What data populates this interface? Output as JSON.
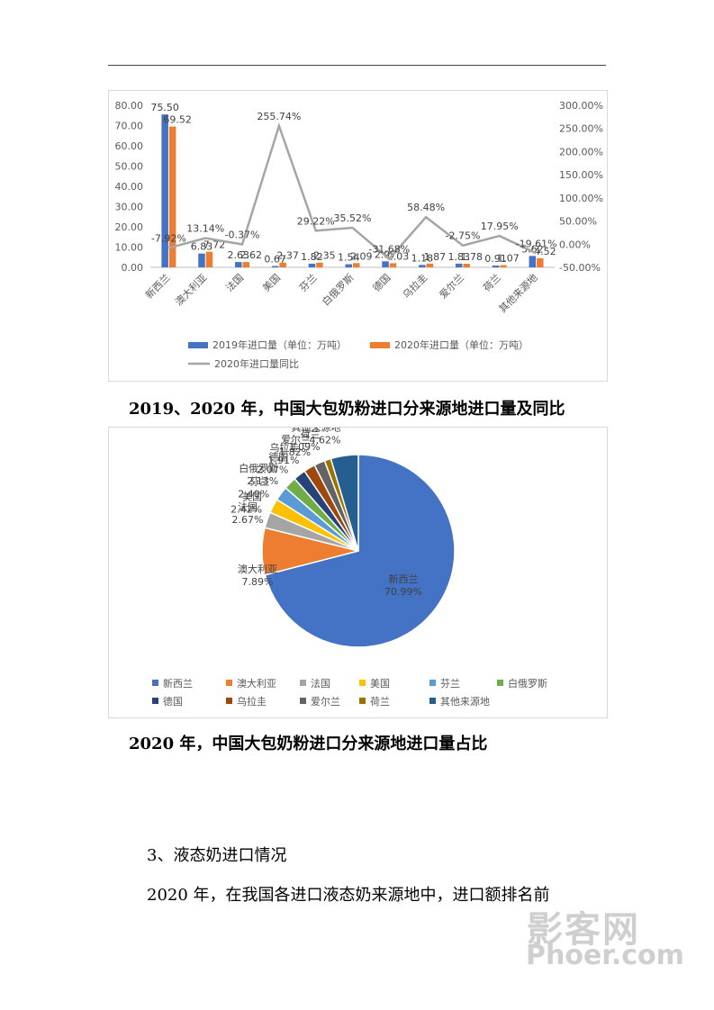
{
  "charts": {
    "bar_line": {
      "caption": "2019、2020 年，中国大包奶粉进口分来源地进口量及同比",
      "legend": {
        "s2019": "2019年进口量（单位：万吨）",
        "s2020": "2020年进口量（单位：万吨）",
        "yoy": "2020年进口量同比"
      }
    },
    "pie": {
      "caption": "2020 年，中国大包奶粉进口分来源地进口量占比"
    }
  },
  "chart_data": [
    {
      "type": "bar",
      "categories": [
        "新西兰",
        "澳大利亚",
        "法国",
        "美国",
        "芬兰",
        "白俄罗斯",
        "德国",
        "乌拉圭",
        "爱尔兰",
        "荷兰",
        "其他来源地"
      ],
      "series": [
        {
          "name": "2019年进口量（单位：万吨）",
          "values": [
            75.5,
            6.83,
            2.63,
            0.67,
            1.82,
            1.54,
            2.97,
            1.18,
            1.83,
            0.91,
            5.62
          ],
          "labels": [
            "75.50",
            "6.83",
            "2.63",
            "0.67",
            "1.82",
            "1.54",
            "2.97",
            "1.18",
            "1.83",
            "0.91",
            "5.62"
          ],
          "color": "#4472c4"
        },
        {
          "name": "2020年进口量（单位：万吨）",
          "values": [
            69.52,
            7.72,
            2.62,
            2.37,
            2.35,
            2.09,
            2.03,
            1.87,
            1.78,
            1.07,
            4.52
          ],
          "labels": [
            "69.52",
            "7.72",
            "2.62",
            "2.37",
            "2.35",
            "2.09",
            "2.03",
            "1.87",
            "1.78",
            "1.07",
            "4.52"
          ],
          "color": "#ed7d31"
        },
        {
          "name": "2020年进口量同比",
          "type": "line",
          "axis": "right",
          "values": [
            -7.92,
            13.14,
            -0.37,
            255.74,
            29.22,
            35.52,
            -31.68,
            58.48,
            -2.75,
            17.95,
            -19.61
          ],
          "labels": [
            "-7.92%",
            "13.14%",
            "-0.37%",
            "255.74%",
            "29.22%",
            "35.52%",
            "-31.68%",
            "58.48%",
            "-2.75%",
            "17.95%",
            "-19.61%"
          ],
          "color": "#a5a5a5"
        }
      ],
      "ylim_left": [
        0,
        80
      ],
      "yticks_left": [
        "0.00",
        "10.00",
        "20.00",
        "30.00",
        "40.00",
        "50.00",
        "60.00",
        "70.00",
        "80.00"
      ],
      "ylim_right": [
        -50,
        300
      ],
      "yticks_right": [
        "-50.00%",
        "0.00%",
        "50.00%",
        "100.00%",
        "150.00%",
        "200.00%",
        "250.00%",
        "300.00%"
      ],
      "legend_position": "bottom"
    },
    {
      "type": "pie",
      "categories": [
        "新西兰",
        "澳大利亚",
        "法国",
        "美国",
        "芬兰",
        "白俄罗斯",
        "德国",
        "乌拉圭",
        "爱尔兰",
        "荷兰",
        "其他来源地"
      ],
      "values": [
        70.99,
        7.89,
        2.67,
        2.42,
        2.4,
        2.13,
        2.07,
        1.91,
        1.82,
        1.09,
        4.62
      ],
      "labels": [
        "70.99%",
        "7.89%",
        "2.67%",
        "2.42%",
        "2.40%",
        "2.13%",
        "2.07%",
        "1.91%",
        "1.82%",
        "1.09%",
        "4.62%"
      ],
      "colors": [
        "#4472c4",
        "#ed7d31",
        "#a5a5a5",
        "#ffc000",
        "#5b9bd5",
        "#70ad47",
        "#264478",
        "#9e480e",
        "#636363",
        "#997300",
        "#255e91"
      ],
      "legend_position": "bottom"
    }
  ],
  "text": {
    "heading": "3、液态奶进口情况",
    "para": "2020 年，在我国各进口液态奶来源地中，进口额排名前"
  },
  "watermark": {
    "line1": "影客网",
    "line2": "Phoer.com"
  }
}
